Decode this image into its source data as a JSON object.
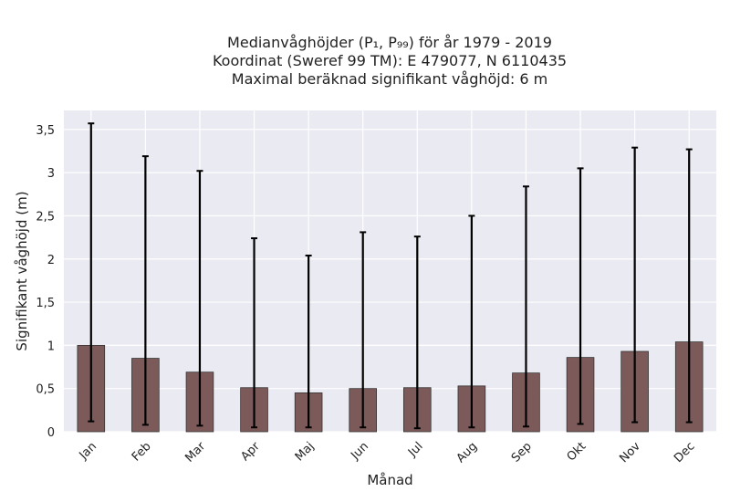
{
  "chart_data": {
    "type": "bar",
    "title_lines": [
      "Medianvåghöjder (P₁, P₉₉) för år 1979 - 2019",
      "Koordinat (Sweref 99 TM): E 479077, N 6110435",
      "Maximal beräknad signifikant våghöjd: 6 m"
    ],
    "xlabel": "Månad",
    "ylabel": "Signifikant våghöjd (m)",
    "categories": [
      "Jan",
      "Feb",
      "Mar",
      "Apr",
      "Maj",
      "Jun",
      "Jul",
      "Aug",
      "Sep",
      "Okt",
      "Nov",
      "Dec"
    ],
    "series": [
      {
        "values": [
          1.0,
          0.85,
          0.69,
          0.51,
          0.45,
          0.5,
          0.51,
          0.53,
          0.68,
          0.86,
          0.93,
          1.04
        ],
        "error_low": [
          0.12,
          0.08,
          0.07,
          0.05,
          0.05,
          0.05,
          0.04,
          0.05,
          0.06,
          0.09,
          0.11,
          0.11
        ],
        "error_high": [
          3.57,
          3.19,
          3.02,
          2.24,
          2.04,
          2.31,
          2.26,
          2.5,
          2.84,
          3.05,
          3.29,
          3.27
        ]
      }
    ],
    "ylim": [
      0,
      3.72
    ],
    "yticks": [
      0,
      0.5,
      1,
      1.5,
      2,
      2.5,
      3,
      3.5
    ],
    "ytick_labels": [
      "0",
      "0,5",
      "1",
      "1,5",
      "2",
      "2,5",
      "3",
      "3,5"
    ],
    "grid": true,
    "colors": {
      "bar": "#7d5a5a",
      "bar_edge": "#333333",
      "error_bar": "#000000",
      "plot_background": "#eaeaf2",
      "grid": "#ffffff"
    }
  }
}
